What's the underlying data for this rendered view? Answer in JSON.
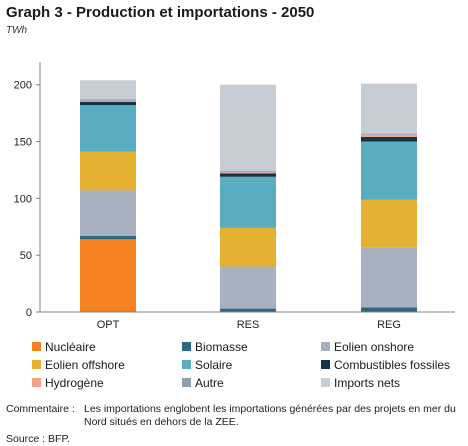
{
  "header": {
    "title": "Graph 3 - Production et importations - 2050",
    "unit": "TWh"
  },
  "chart_data": {
    "type": "bar",
    "stacked": true,
    "title": "Graph 3 - Production et importations - 2050",
    "ylabel": "TWh",
    "xlabel": "",
    "categories": [
      "OPT",
      "RES",
      "REG"
    ],
    "ylim": [
      0,
      220
    ],
    "yticks": [
      0,
      50,
      100,
      150,
      200
    ],
    "grid": false,
    "legend_position": "bottom",
    "series": [
      {
        "name": "Nucléaire",
        "color": "#F58220",
        "values": [
          64,
          0,
          0
        ]
      },
      {
        "name": "Biomasse",
        "color": "#2E6883",
        "values": [
          3,
          3,
          4
        ]
      },
      {
        "name": "Eolien onshore",
        "color": "#A7B0BE",
        "values": [
          40,
          37,
          53
        ]
      },
      {
        "name": "Eolien offshore",
        "color": "#E5B133",
        "values": [
          34,
          34,
          42
        ]
      },
      {
        "name": "Solaire",
        "color": "#5AADC1",
        "values": [
          41,
          45,
          51
        ]
      },
      {
        "name": "Combustibles fossiles",
        "color": "#17334C",
        "values": [
          3,
          3,
          4
        ]
      },
      {
        "name": "Hydrogène",
        "color": "#F2A488",
        "values": [
          1,
          1,
          2
        ]
      },
      {
        "name": "Autre",
        "color": "#8FA0AE",
        "values": [
          1,
          1,
          1
        ]
      },
      {
        "name": "Imports nets",
        "color": "#C6CDD5",
        "values": [
          17,
          76,
          44
        ]
      }
    ]
  },
  "footer": {
    "comment_label": "Commentaire :",
    "comment_text": "Les importations englobent les importations générées par des projets en mer du Nord situés en dehors de la ZEE.",
    "source": "Source : BFP."
  }
}
